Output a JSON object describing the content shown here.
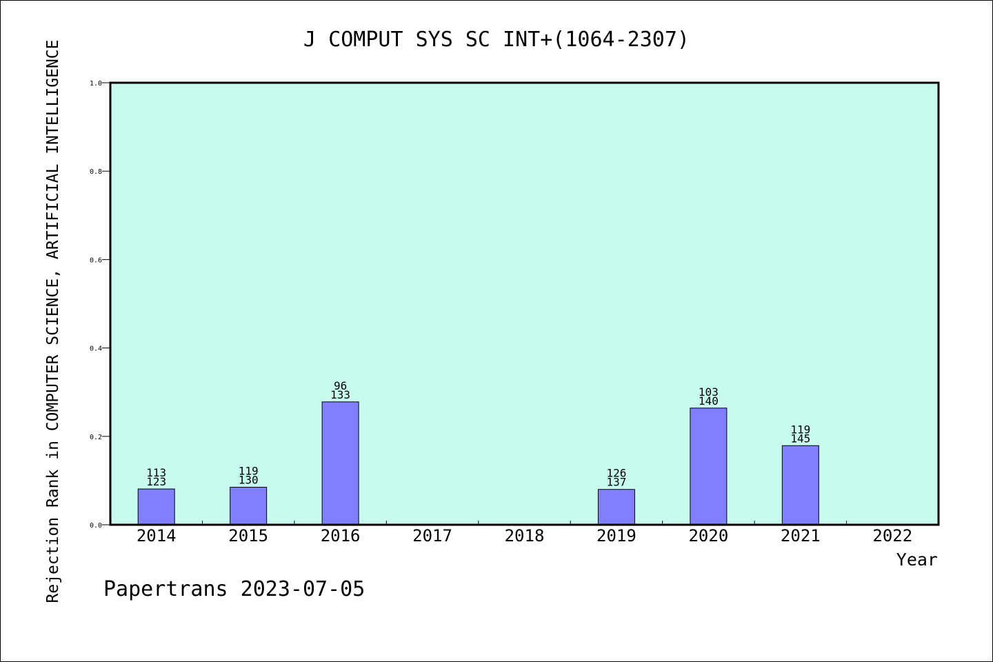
{
  "chart_data": {
    "type": "bar",
    "title": "J COMPUT SYS SC INT+(1064-2307)",
    "xlabel": "Year",
    "ylabel": "Rejection Rank in COMPUTER SCIENCE, ARTIFICIAL INTELLIGENCE",
    "footer": "Papertrans 2023-07-05",
    "categories": [
      "2014",
      "2015",
      "2016",
      "2017",
      "2018",
      "2019",
      "2020",
      "2021",
      "2022"
    ],
    "values": [
      0.081,
      0.085,
      0.278,
      0,
      0,
      0.08,
      0.264,
      0.179,
      0
    ],
    "labels": [
      [
        "113",
        "123"
      ],
      [
        "119",
        "130"
      ],
      [
        "96",
        "133"
      ],
      null,
      null,
      [
        "126",
        "137"
      ],
      [
        "103",
        "140"
      ],
      [
        "119",
        "145"
      ],
      null
    ],
    "ylim": [
      0,
      1.0
    ],
    "yticks": [
      "0.0",
      "0.2",
      "0.4",
      "0.6",
      "0.8",
      "1.0"
    ],
    "grid": false,
    "colors": {
      "plot_background": "#c8fcee",
      "bar_fill": "#8080ff",
      "bar_stroke": "#000000"
    }
  }
}
